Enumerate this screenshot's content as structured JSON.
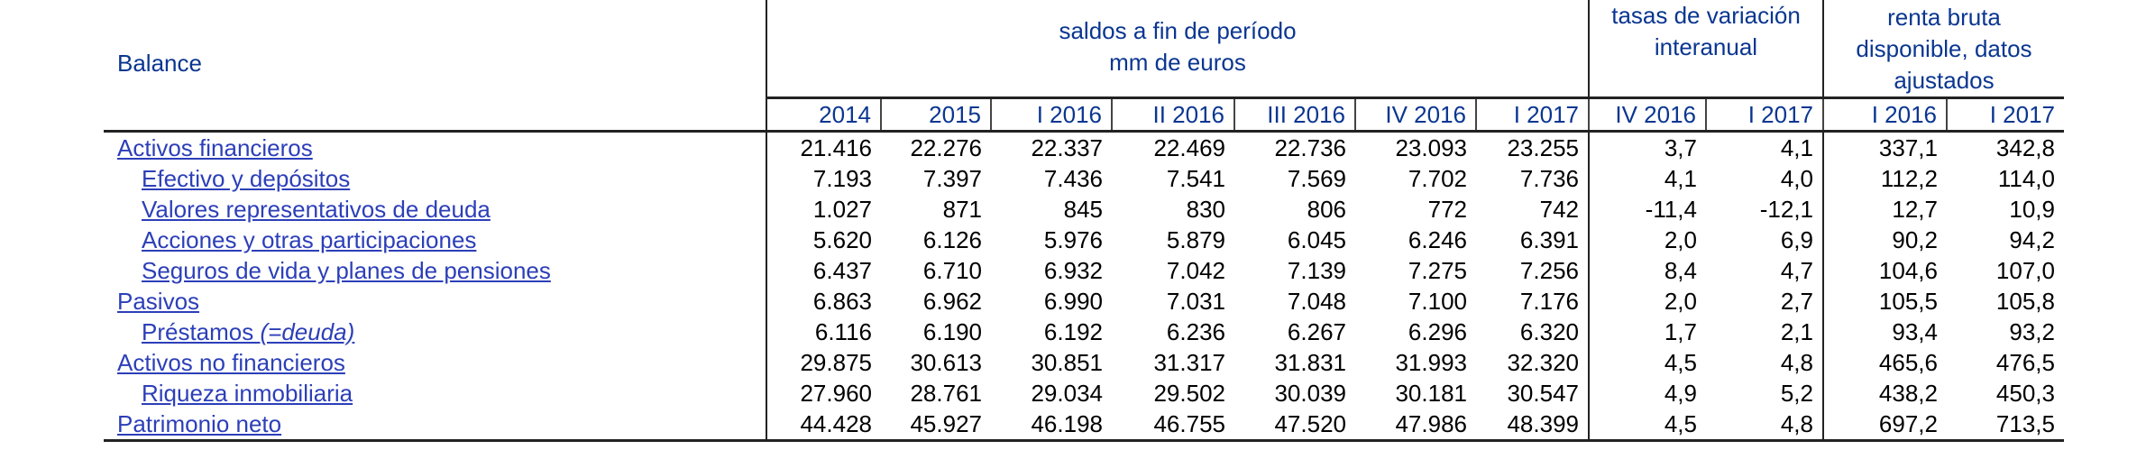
{
  "header": {
    "row_label": "Balance",
    "group_saldos": [
      "saldos a fin de período",
      "mm de euros"
    ],
    "group_tasas": [
      "tasas de variación",
      "interanual"
    ],
    "group_renta": [
      "renta bruta",
      "disponible, datos",
      "ajustados"
    ],
    "periods": [
      "2014",
      "2015",
      "I 2016",
      "II 2016",
      "III 2016",
      "IV 2016",
      "I 2017",
      "IV 2016",
      "I 2017",
      "I 2016",
      "I 2017"
    ]
  },
  "rows": [
    {
      "label": "Activos financieros",
      "values": [
        "21.416",
        "22.276",
        "22.337",
        "22.469",
        "22.736",
        "23.093",
        "23.255",
        "3,7",
        "4,1",
        "337,1",
        "342,8"
      ]
    },
    {
      "label": "Efectivo y depósitos",
      "values": [
        "7.193",
        "7.397",
        "7.436",
        "7.541",
        "7.569",
        "7.702",
        "7.736",
        "4,1",
        "4,0",
        "112,2",
        "114,0"
      ]
    },
    {
      "label": "Valores representativos de deuda",
      "values": [
        "1.027",
        "871",
        "845",
        "830",
        "806",
        "772",
        "742",
        "-11,4",
        "-12,1",
        "12,7",
        "10,9"
      ]
    },
    {
      "label": "Acciones y otras participaciones",
      "values": [
        "5.620",
        "6.126",
        "5.976",
        "5.879",
        "6.045",
        "6.246",
        "6.391",
        "2,0",
        "6,9",
        "90,2",
        "94,2"
      ]
    },
    {
      "label": "Seguros de vida y planes de pensiones",
      "values": [
        "6.437",
        "6.710",
        "6.932",
        "7.042",
        "7.139",
        "7.275",
        "7.256",
        "8,4",
        "4,7",
        "104,6",
        "107,0"
      ]
    },
    {
      "label": "Pasivos",
      "values": [
        "6.863",
        "6.962",
        "6.990",
        "7.031",
        "7.048",
        "7.100",
        "7.176",
        "2,0",
        "2,7",
        "105,5",
        "105,8"
      ]
    },
    {
      "label": "Préstamos ",
      "label_italic": "(=deuda)",
      "values": [
        "6.116",
        "6.190",
        "6.192",
        "6.236",
        "6.267",
        "6.296",
        "6.320",
        "1,7",
        "2,1",
        "93,4",
        "93,2"
      ]
    },
    {
      "label": "Activos no financieros",
      "values": [
        "29.875",
        "30.613",
        "30.851",
        "31.317",
        "31.831",
        "31.993",
        "32.320",
        "4,5",
        "4,8",
        "465,6",
        "476,5"
      ]
    },
    {
      "label": "Riqueza inmobiliaria",
      "values": [
        "27.960",
        "28.761",
        "29.034",
        "29.502",
        "30.039",
        "30.181",
        "30.547",
        "4,9",
        "5,2",
        "438,2",
        "450,3"
      ]
    },
    {
      "label": "Patrimonio neto",
      "values": [
        "44.428",
        "45.927",
        "46.198",
        "46.755",
        "47.520",
        "47.986",
        "48.399",
        "4,5",
        "4,8",
        "697,2",
        "713,5"
      ]
    }
  ]
}
